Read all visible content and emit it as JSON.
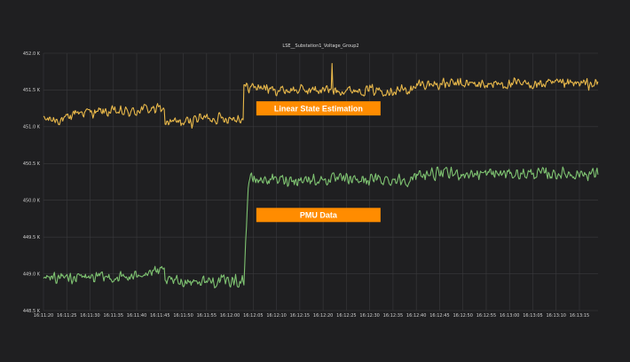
{
  "chart_data": {
    "type": "line",
    "title": "LSE__Substation1_Voltage_Group2",
    "xlabel": "",
    "ylabel": "",
    "grid": true,
    "legend": "none",
    "background": "#1f1f21",
    "ylim": [
      448.5,
      452.0
    ],
    "y_ticks": [
      "448.5 K",
      "449.0 K",
      "449.5 K",
      "450.0 K",
      "450.5 K",
      "451.0 K",
      "451.5 K",
      "452.0 K"
    ],
    "y_tick_values": [
      448.5,
      449.0,
      449.5,
      450.0,
      450.5,
      451.0,
      451.5,
      452.0
    ],
    "x_ticks": [
      "16:11:20",
      "16:11:25",
      "16:11:30",
      "16:11:35",
      "16:11:40",
      "16:11:45",
      "16:11:50",
      "16:11:55",
      "16:12:00",
      "16:12:05",
      "16:12:10",
      "16:12:15",
      "16:12:20",
      "16:12:25",
      "16:12:30",
      "16:12:35",
      "16:12:40",
      "16:12:45",
      "16:12:50",
      "16:12:55",
      "16:13:00",
      "16:13:05",
      "16:13:10",
      "16:13:15"
    ],
    "xlim": [
      "16:11:20",
      "16:13:19"
    ],
    "series": [
      {
        "color": "#e8b84a",
        "segments": [
          {
            "from": "16:11:20",
            "to": "16:11:26",
            "level": 451.1
          },
          {
            "from": "16:11:26",
            "to": "16:11:40",
            "level": 451.2
          },
          {
            "from": "16:11:40",
            "to": "16:11:46",
            "level": 451.24
          },
          {
            "from": "16:11:46",
            "to": "16:11:52",
            "level": 451.06
          },
          {
            "from": "16:11:52",
            "to": "16:12:03",
            "level": 451.12
          },
          {
            "from": "16:12:03",
            "to": "16:12:08",
            "level": 451.54
          },
          {
            "from": "16:12:08",
            "to": "16:12:40",
            "level": 451.5
          },
          {
            "from": "16:12:40",
            "to": "16:13:19",
            "level": 451.58
          }
        ],
        "spikes": [
          {
            "time": "16:12:22",
            "value": 451.86
          }
        ],
        "noise": 0.09
      },
      {
        "color": "#7ec271",
        "segments": [
          {
            "from": "16:11:20",
            "to": "16:11:40",
            "level": 448.95
          },
          {
            "from": "16:11:40",
            "to": "16:11:46",
            "level": 449.02
          },
          {
            "from": "16:11:46",
            "to": "16:12:03",
            "level": 448.9
          },
          {
            "from": "16:12:04",
            "to": "16:12:08",
            "level": 450.28
          },
          {
            "from": "16:12:08",
            "to": "16:12:40",
            "level": 450.28
          },
          {
            "from": "16:12:40",
            "to": "16:13:19",
            "level": 450.36
          }
        ],
        "noise": 0.1
      }
    ],
    "annotations": [
      {
        "text": "Linear State Estimation",
        "time": "16:12:19",
        "value": 451.25,
        "color": "#ff8c00"
      },
      {
        "text": "PMU Data",
        "time": "16:12:19",
        "value": 449.8,
        "color": "#ff8c00"
      }
    ]
  }
}
